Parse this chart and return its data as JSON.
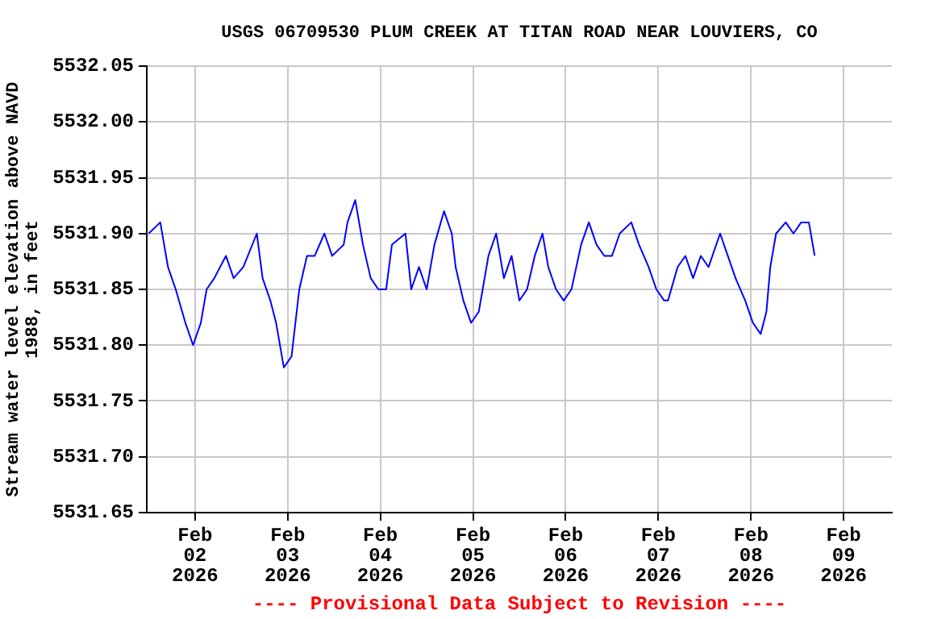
{
  "chart_data": {
    "type": "line",
    "title": "USGS 06709530 PLUM CREEK AT TITAN ROAD NEAR LOUVIERS, CO",
    "ylabel": "Stream water level elevation above NAVD 1988, in feet",
    "annotations": [
      "---- Provisional Data Subject to Revision ----"
    ],
    "x": [
      "2026-02-01T12:00",
      "2026-02-01T15:00",
      "2026-02-01T17:00",
      "2026-02-01T19:00",
      "2026-02-01T21:30",
      "2026-02-01T23:30",
      "2026-02-02T01:30",
      "2026-02-02T03:00",
      "2026-02-02T05:00",
      "2026-02-02T08:00",
      "2026-02-02T10:00",
      "2026-02-02T12:30",
      "2026-02-02T16:00",
      "2026-02-02T17:30",
      "2026-02-02T19:30",
      "2026-02-02T21:00",
      "2026-02-02T23:00",
      "2026-02-03T01:00",
      "2026-02-03T03:00",
      "2026-02-03T05:00",
      "2026-02-03T07:00",
      "2026-02-03T09:30",
      "2026-02-03T11:30",
      "2026-02-03T14:30",
      "2026-02-03T15:30",
      "2026-02-03T17:30",
      "2026-02-03T19:30",
      "2026-02-03T21:30",
      "2026-02-03T23:30",
      "2026-02-04T01:30",
      "2026-02-04T03:00",
      "2026-02-04T06:30",
      "2026-02-04T08:00",
      "2026-02-04T10:00",
      "2026-02-04T12:00",
      "2026-02-04T14:00",
      "2026-02-04T16:30",
      "2026-02-04T18:30",
      "2026-02-04T19:30",
      "2026-02-04T21:30",
      "2026-02-04T23:30",
      "2026-02-05T01:30",
      "2026-02-05T02:30",
      "2026-02-05T04:00",
      "2026-02-05T06:00",
      "2026-02-05T08:00",
      "2026-02-05T10:00",
      "2026-02-05T12:00",
      "2026-02-05T14:00",
      "2026-02-05T16:00",
      "2026-02-05T18:00",
      "2026-02-05T19:30",
      "2026-02-05T21:30",
      "2026-02-05T23:30",
      "2026-02-06T01:30",
      "2026-02-06T04:00",
      "2026-02-06T06:00",
      "2026-02-06T08:00",
      "2026-02-06T10:00",
      "2026-02-06T12:00",
      "2026-02-06T14:00",
      "2026-02-06T17:00",
      "2026-02-06T19:00",
      "2026-02-06T21:30",
      "2026-02-06T23:30",
      "2026-02-07T01:30",
      "2026-02-07T02:30",
      "2026-02-07T05:00",
      "2026-02-07T07:00",
      "2026-02-07T09:00",
      "2026-02-07T11:00",
      "2026-02-07T13:00",
      "2026-02-07T16:00",
      "2026-02-07T18:00",
      "2026-02-07T20:00",
      "2026-02-07T22:30",
      "2026-02-08T00:30",
      "2026-02-08T02:30",
      "2026-02-08T04:00",
      "2026-02-08T05:00",
      "2026-02-08T06:30",
      "2026-02-08T09:00",
      "2026-02-08T11:00",
      "2026-02-08T13:00",
      "2026-02-08T15:00",
      "2026-02-08T16:30"
    ],
    "series": [
      {
        "color": "#0000ff",
        "values": [
          5531.9,
          5531.91,
          5531.87,
          5531.85,
          5531.82,
          5531.8,
          5531.82,
          5531.85,
          5531.86,
          5531.88,
          5531.86,
          5531.87,
          5531.9,
          5531.86,
          5531.84,
          5531.82,
          5531.78,
          5531.79,
          5531.85,
          5531.88,
          5531.88,
          5531.9,
          5531.88,
          5531.89,
          5531.91,
          5531.93,
          5531.89,
          5531.86,
          5531.85,
          5531.85,
          5531.89,
          5531.9,
          5531.85,
          5531.87,
          5531.85,
          5531.89,
          5531.92,
          5531.9,
          5531.87,
          5531.84,
          5531.82,
          5531.83,
          5531.85,
          5531.88,
          5531.9,
          5531.86,
          5531.88,
          5531.84,
          5531.85,
          5531.88,
          5531.9,
          5531.87,
          5531.85,
          5531.84,
          5531.85,
          5531.89,
          5531.91,
          5531.89,
          5531.88,
          5531.88,
          5531.9,
          5531.91,
          5531.89,
          5531.87,
          5531.85,
          5531.84,
          5531.84,
          5531.87,
          5531.88,
          5531.86,
          5531.88,
          5531.87,
          5531.9,
          5531.88,
          5531.86,
          5531.84,
          5531.82,
          5531.81,
          5531.83,
          5531.87,
          5531.9,
          5531.91,
          5531.9,
          5531.91,
          5531.91,
          5531.88
        ]
      }
    ],
    "xlim": [
      "2026-02-01T11:30",
      "2026-02-09T12:30"
    ],
    "xticks": [
      {
        "value": "2026-02-02",
        "label": "Feb 02 2026"
      },
      {
        "value": "2026-02-03",
        "label": "Feb 03 2026"
      },
      {
        "value": "2026-02-04",
        "label": "Feb 04 2026"
      },
      {
        "value": "2026-02-05",
        "label": "Feb 05 2026"
      },
      {
        "value": "2026-02-06",
        "label": "Feb 06 2026"
      },
      {
        "value": "2026-02-07",
        "label": "Feb 07 2026"
      },
      {
        "value": "2026-02-08",
        "label": "Feb 08 2026"
      },
      {
        "value": "2026-02-09",
        "label": "Feb 09 2026"
      }
    ],
    "ylim": [
      5531.65,
      5532.05
    ],
    "yticks": [
      5531.65,
      {
        "value": 5531.7,
        "label": "5531.70"
      },
      5531.75,
      {
        "value": 5531.8,
        "label": "5531.80"
      },
      5531.85,
      {
        "value": 5531.9,
        "label": "5531.90"
      },
      5531.95,
      {
        "value": 5532,
        "label": "5532.00"
      },
      5532.05
    ],
    "grid": true,
    "legend": false,
    "marker": "none",
    "line_style": "solid"
  }
}
